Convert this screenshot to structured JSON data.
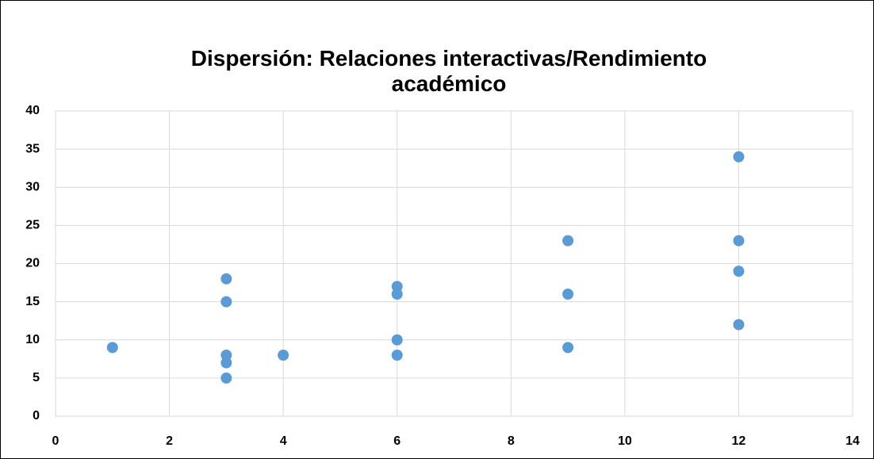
{
  "chart_data": {
    "type": "scatter",
    "title": "Dispersión: Relaciones interactivas/Rendimiento académico",
    "x": [
      1,
      3,
      3,
      3,
      3,
      3,
      4,
      6,
      6,
      6,
      6,
      9,
      9,
      9,
      12,
      12,
      12,
      12
    ],
    "values": [
      9,
      18,
      15,
      8,
      7,
      5,
      8,
      17,
      16,
      10,
      8,
      23,
      16,
      9,
      34,
      23,
      19,
      12
    ],
    "color": "#5b9bd5",
    "xlim": [
      0,
      14
    ],
    "xticks": [
      0,
      2,
      4,
      6,
      8,
      10,
      12,
      14
    ],
    "ylim": [
      0,
      40
    ],
    "yticks": [
      0,
      5,
      10,
      15,
      20,
      25,
      30,
      35,
      40
    ],
    "grid": true
  }
}
